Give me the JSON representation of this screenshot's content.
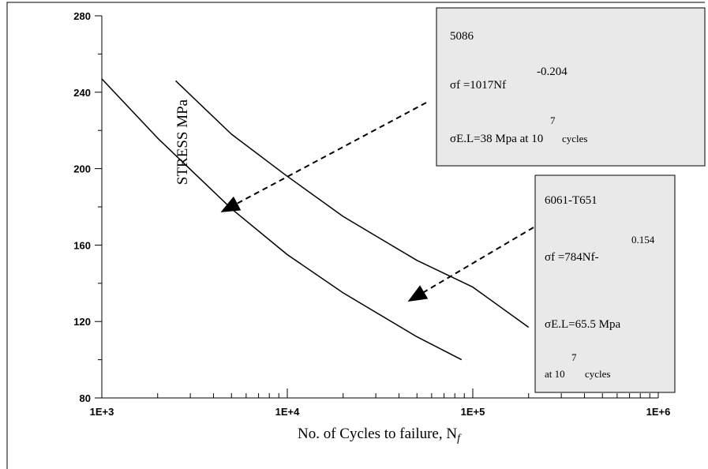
{
  "chart_data": {
    "type": "line",
    "xlabel": "No. of Cycles to failure, N",
    "xlabel_sub": "f",
    "ylabel": "STRESS   MPa",
    "log_x": true,
    "xlim": [
      1000,
      1000000
    ],
    "xticks": [
      {
        "value": 1000,
        "label": "1E+3"
      },
      {
        "value": 10000,
        "label": "1E+4"
      },
      {
        "value": 100000,
        "label": "1E+5"
      },
      {
        "value": 1000000,
        "label": "1E+6"
      }
    ],
    "x_minor_ticks": [
      2000,
      3000,
      4000,
      5000,
      6000,
      7000,
      8000,
      9000,
      20000,
      30000,
      40000,
      50000,
      60000,
      70000,
      80000,
      90000,
      200000,
      300000,
      400000,
      500000,
      600000,
      700000,
      800000,
      900000
    ],
    "ylim": [
      80,
      280
    ],
    "yticks": [
      80,
      120,
      160,
      200,
      240,
      280
    ],
    "y_minor_ticks": [
      100,
      140,
      180,
      220,
      260
    ],
    "color": "#000000",
    "series": [
      {
        "x": [
          1000,
          2000,
          5000,
          10000,
          20000,
          50000,
          87000
        ],
        "values": [
          247,
          216,
          179,
          155,
          135,
          112,
          100
        ]
      },
      {
        "x": [
          2500,
          5000,
          10000,
          20000,
          50000,
          100000,
          200000
        ],
        "values": [
          246,
          218,
          196,
          175,
          152,
          138,
          117
        ]
      }
    ],
    "annotations": [
      "5086",
      "σf =1017Nf",
      "-0.204",
      "σE.L=38 Mpa at 10",
      "7",
      "cycles",
      "6061-T651",
      "σf =784Nf-",
      "0.154",
      "σE.L=65.5 Mpa",
      "at 10",
      "7",
      "cycles"
    ]
  }
}
